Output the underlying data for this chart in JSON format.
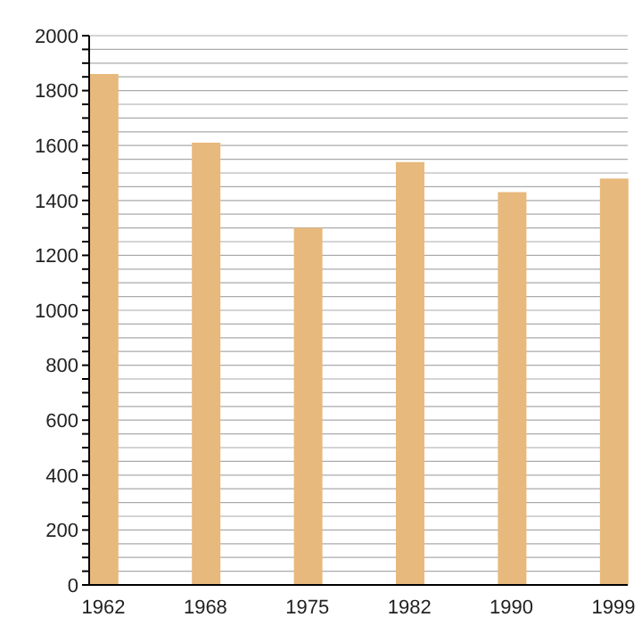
{
  "chart_data": {
    "type": "bar",
    "categories": [
      "1962",
      "1968",
      "1975",
      "1982",
      "1990",
      "1999"
    ],
    "values": [
      1860,
      1610,
      1300,
      1540,
      1430,
      1480
    ],
    "color": "#e8b97c",
    "ylim": [
      0,
      2000
    ],
    "yticks": [
      0,
      {
        "value": 50,
        "label": null
      },
      {
        "value": 100,
        "label": null
      },
      {
        "value": 150,
        "label": null
      },
      200,
      {
        "value": 250,
        "label": null
      },
      {
        "value": 300,
        "label": null
      },
      {
        "value": 350,
        "label": null
      },
      400,
      {
        "value": 450,
        "label": null
      },
      {
        "value": 500,
        "label": null
      },
      {
        "value": 550,
        "label": null
      },
      600,
      {
        "value": 650,
        "label": null
      },
      {
        "value": 700,
        "label": null
      },
      {
        "value": 750,
        "label": null
      },
      800,
      {
        "value": 850,
        "label": null
      },
      {
        "value": 900,
        "label": null
      },
      {
        "value": 950,
        "label": null
      },
      1000,
      {
        "value": 1050,
        "label": null
      },
      {
        "value": 1100,
        "label": null
      },
      {
        "value": 1150,
        "label": null
      },
      1200,
      {
        "value": 1250,
        "label": null
      },
      {
        "value": 1300,
        "label": null
      },
      {
        "value": 1350,
        "label": null
      },
      1400,
      {
        "value": 1450,
        "label": null
      },
      {
        "value": 1500,
        "label": null
      },
      {
        "value": 1550,
        "label": null
      },
      1600,
      {
        "value": 1650,
        "label": null
      },
      {
        "value": 1700,
        "label": null
      },
      {
        "value": 1750,
        "label": null
      },
      1800,
      {
        "value": 1850,
        "label": null
      },
      {
        "value": 1900,
        "label": null
      },
      {
        "value": 1950,
        "label": null
      },
      2000
    ],
    "grid": "y"
  }
}
